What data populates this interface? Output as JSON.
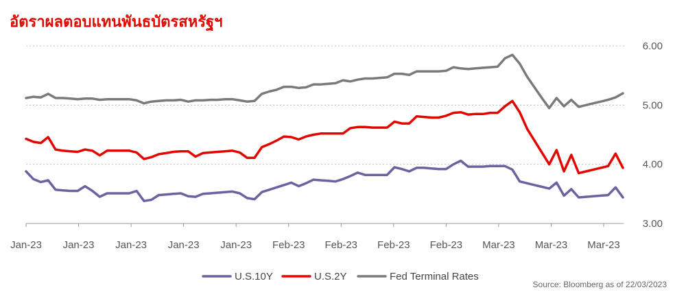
{
  "chart_data": {
    "type": "line",
    "title": "อัตราผลตอบแทนพันธบัตรสหรัฐฯ",
    "source": "Source: Bloomberg as of 22/03/2023",
    "x_tick_labels": [
      "Jan-23",
      "Jan-23",
      "Jan-23",
      "Jan-23",
      "Jan-23",
      "Feb-23",
      "Feb-23",
      "Feb-23",
      "Feb-23",
      "Mar-23",
      "Mar-23",
      "Mar-23"
    ],
    "y_tick_labels": [
      "3.00",
      "4.00",
      "5.00",
      "6.00"
    ],
    "ylim": [
      3.0,
      6.0
    ],
    "y_ticks": [
      3.0,
      4.0,
      5.0,
      6.0
    ],
    "grid": true,
    "legend_position": "bottom",
    "colors": {
      "us10y": "#6b62a0",
      "us2y": "#e10600",
      "fed": "#7a7a7a",
      "grid": "#bfbfbf",
      "axis": "#9a9a9a"
    },
    "series": [
      {
        "name": "U.S.10Y",
        "color": "#6b62a0",
        "values": [
          3.88,
          3.75,
          3.7,
          3.73,
          3.57,
          3.56,
          3.55,
          3.55,
          3.63,
          3.55,
          3.45,
          3.51,
          3.51,
          3.51,
          3.51,
          3.55,
          3.38,
          3.4,
          3.48,
          3.49,
          3.5,
          3.51,
          3.46,
          3.45,
          3.5,
          3.51,
          3.52,
          3.53,
          3.54,
          3.51,
          3.43,
          3.41,
          3.53,
          3.57,
          3.61,
          3.65,
          3.69,
          3.63,
          3.68,
          3.74,
          3.73,
          3.72,
          3.71,
          3.75,
          3.8,
          3.86,
          3.82,
          3.82,
          3.82,
          3.82,
          3.95,
          3.92,
          3.88,
          3.94,
          3.94,
          3.93,
          3.92,
          3.92,
          4.0,
          4.06,
          3.96,
          3.96,
          3.96,
          3.97,
          3.97,
          3.97,
          3.91,
          3.71,
          3.68,
          3.65,
          3.62,
          3.59,
          3.69,
          3.47,
          3.58,
          3.44,
          3.45,
          3.46,
          3.47,
          3.48,
          3.61,
          3.44
        ]
      },
      {
        "name": "U.S.2Y",
        "color": "#e10600",
        "values": [
          4.43,
          4.38,
          4.36,
          4.46,
          4.25,
          4.23,
          4.22,
          4.21,
          4.25,
          4.23,
          4.15,
          4.23,
          4.23,
          4.23,
          4.23,
          4.2,
          4.09,
          4.12,
          4.17,
          4.19,
          4.21,
          4.22,
          4.22,
          4.13,
          4.19,
          4.2,
          4.21,
          4.22,
          4.23,
          4.2,
          4.11,
          4.11,
          4.29,
          4.34,
          4.4,
          4.47,
          4.46,
          4.42,
          4.47,
          4.5,
          4.52,
          4.52,
          4.52,
          4.52,
          4.61,
          4.63,
          4.63,
          4.62,
          4.62,
          4.62,
          4.72,
          4.69,
          4.69,
          4.81,
          4.8,
          4.79,
          4.79,
          4.82,
          4.87,
          4.88,
          4.84,
          4.85,
          4.85,
          4.87,
          4.87,
          4.98,
          5.07,
          4.88,
          4.6,
          4.4,
          4.2,
          4.0,
          4.24,
          3.88,
          4.16,
          3.85,
          3.88,
          3.91,
          3.94,
          3.97,
          4.18,
          3.94
        ]
      },
      {
        "name": "Fed Terminal Rates",
        "color": "#7a7a7a",
        "values": [
          5.12,
          5.14,
          5.13,
          5.19,
          5.12,
          5.12,
          5.11,
          5.1,
          5.11,
          5.11,
          5.09,
          5.1,
          5.1,
          5.1,
          5.1,
          5.08,
          5.03,
          5.06,
          5.07,
          5.08,
          5.08,
          5.09,
          5.06,
          5.08,
          5.08,
          5.09,
          5.09,
          5.1,
          5.1,
          5.08,
          5.06,
          5.07,
          5.19,
          5.23,
          5.26,
          5.31,
          5.31,
          5.29,
          5.3,
          5.35,
          5.35,
          5.36,
          5.37,
          5.42,
          5.4,
          5.43,
          5.45,
          5.45,
          5.46,
          5.47,
          5.53,
          5.53,
          5.51,
          5.57,
          5.57,
          5.57,
          5.57,
          5.58,
          5.64,
          5.62,
          5.61,
          5.62,
          5.63,
          5.64,
          5.65,
          5.79,
          5.85,
          5.7,
          5.48,
          5.3,
          5.12,
          4.95,
          5.12,
          4.98,
          5.09,
          4.97,
          5.0,
          5.03,
          5.06,
          5.09,
          5.13,
          5.2
        ]
      }
    ]
  }
}
